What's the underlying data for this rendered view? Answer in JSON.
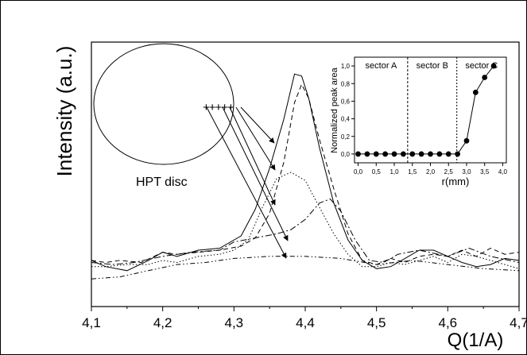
{
  "chart_data": [
    {
      "type": "line",
      "title": "",
      "xlabel": "Q(1/A)",
      "ylabel": "Intensity (a.u.)",
      "xlim": [
        4.1,
        4.7
      ],
      "ylim": [
        0,
        1
      ],
      "x_ticks": [
        "4,1",
        "4,2",
        "4,3",
        "4,4",
        "4,5",
        "4,6",
        "4,7"
      ],
      "grid": false,
      "series": [
        {
          "style": "solid",
          "points": [
            [
              4.1,
              0.07
            ],
            [
              4.12,
              0.04
            ],
            [
              4.15,
              0.02
            ],
            [
              4.18,
              0.07
            ],
            [
              4.2,
              0.11
            ],
            [
              4.22,
              0.09
            ],
            [
              4.25,
              0.12
            ],
            [
              4.28,
              0.13
            ],
            [
              4.31,
              0.19
            ],
            [
              4.33,
              0.32
            ],
            [
              4.35,
              0.52
            ],
            [
              4.37,
              0.76
            ],
            [
              4.385,
              0.98
            ],
            [
              4.395,
              0.97
            ],
            [
              4.405,
              0.86
            ],
            [
              4.42,
              0.62
            ],
            [
              4.44,
              0.35
            ],
            [
              4.46,
              0.17
            ],
            [
              4.48,
              0.07
            ],
            [
              4.5,
              0.03
            ],
            [
              4.52,
              0.04
            ],
            [
              4.54,
              0.08
            ],
            [
              4.56,
              0.12
            ],
            [
              4.58,
              0.12
            ],
            [
              4.6,
              0.09
            ],
            [
              4.62,
              0.06
            ],
            [
              4.64,
              0.04
            ],
            [
              4.66,
              0.05
            ],
            [
              4.68,
              0.08
            ],
            [
              4.7,
              0.07
            ]
          ]
        },
        {
          "style": "dashed",
          "points": [
            [
              4.1,
              0.07
            ],
            [
              4.12,
              0.06
            ],
            [
              4.14,
              0.07
            ],
            [
              4.17,
              0.06
            ],
            [
              4.2,
              0.11
            ],
            [
              4.22,
              0.1
            ],
            [
              4.25,
              0.11
            ],
            [
              4.28,
              0.12
            ],
            [
              4.31,
              0.14
            ],
            [
              4.33,
              0.18
            ],
            [
              4.35,
              0.3
            ],
            [
              4.37,
              0.55
            ],
            [
              4.385,
              0.84
            ],
            [
              4.395,
              0.93
            ],
            [
              4.405,
              0.86
            ],
            [
              4.42,
              0.66
            ],
            [
              4.44,
              0.42
            ],
            [
              4.46,
              0.2
            ],
            [
              4.48,
              0.07
            ],
            [
              4.5,
              0.05
            ],
            [
              4.52,
              0.08
            ],
            [
              4.54,
              0.06
            ],
            [
              4.56,
              0.09
            ],
            [
              4.58,
              0.1
            ],
            [
              4.6,
              0.09
            ],
            [
              4.62,
              0.12
            ],
            [
              4.64,
              0.09
            ],
            [
              4.66,
              0.13
            ],
            [
              4.68,
              0.1
            ],
            [
              4.7,
              0.11
            ]
          ]
        },
        {
          "style": "dotted",
          "points": [
            [
              4.1,
              0.04
            ],
            [
              4.12,
              0.04
            ],
            [
              4.15,
              0.05
            ],
            [
              4.18,
              0.05
            ],
            [
              4.2,
              0.07
            ],
            [
              4.22,
              0.06
            ],
            [
              4.25,
              0.09
            ],
            [
              4.28,
              0.1
            ],
            [
              4.3,
              0.12
            ],
            [
              4.32,
              0.17
            ],
            [
              4.34,
              0.33
            ],
            [
              4.36,
              0.47
            ],
            [
              4.38,
              0.5
            ],
            [
              4.4,
              0.46
            ],
            [
              4.42,
              0.33
            ],
            [
              4.44,
              0.2
            ],
            [
              4.46,
              0.1
            ],
            [
              4.48,
              0.04
            ],
            [
              4.5,
              0.04
            ],
            [
              4.52,
              0.06
            ],
            [
              4.54,
              0.05
            ],
            [
              4.56,
              0.07
            ],
            [
              4.58,
              0.09
            ],
            [
              4.6,
              0.06
            ],
            [
              4.62,
              0.1
            ],
            [
              4.64,
              0.09
            ],
            [
              4.66,
              0.07
            ],
            [
              4.68,
              0.05
            ],
            [
              4.7,
              0.03
            ]
          ]
        },
        {
          "style": "dash-dot",
          "points": [
            [
              4.1,
              0.06
            ],
            [
              4.13,
              0.05
            ],
            [
              4.16,
              0.06
            ],
            [
              4.2,
              0.09
            ],
            [
              4.24,
              0.11
            ],
            [
              4.28,
              0.12
            ],
            [
              4.3,
              0.16
            ],
            [
              4.33,
              0.18
            ],
            [
              4.36,
              0.2
            ],
            [
              4.38,
              0.22
            ],
            [
              4.4,
              0.27
            ],
            [
              4.42,
              0.35
            ],
            [
              4.435,
              0.37
            ],
            [
              4.45,
              0.31
            ],
            [
              4.47,
              0.17
            ],
            [
              4.49,
              0.07
            ],
            [
              4.51,
              0.06
            ],
            [
              4.53,
              0.1
            ],
            [
              4.56,
              0.12
            ],
            [
              4.6,
              0.09
            ],
            [
              4.63,
              0.13
            ],
            [
              4.66,
              0.09
            ],
            [
              4.7,
              0.06
            ]
          ]
        },
        {
          "style": "dash-dot-dot",
          "points": [
            [
              4.1,
              -0.02
            ],
            [
              4.14,
              -0.01
            ],
            [
              4.18,
              0.02
            ],
            [
              4.22,
              0.05
            ],
            [
              4.26,
              0.06
            ],
            [
              4.3,
              0.08
            ],
            [
              4.35,
              0.09
            ],
            [
              4.4,
              0.09
            ],
            [
              4.45,
              0.08
            ],
            [
              4.5,
              0.05
            ],
            [
              4.55,
              0.07
            ],
            [
              4.6,
              0.05
            ],
            [
              4.65,
              0.03
            ],
            [
              4.7,
              0.02
            ]
          ]
        }
      ],
      "annotations": {
        "disc_label": "HPT disc",
        "marker_symbols": "+++++"
      }
    },
    {
      "type": "scatter",
      "title": "",
      "xlabel": "r(mm)",
      "ylabel": "Normalized peak area",
      "xlim": [
        -0.1,
        4.1
      ],
      "ylim": [
        -0.1,
        1.1
      ],
      "x_ticks": [
        "0,0",
        "0,5",
        "1,0",
        "1,5",
        "2,0",
        "2,5",
        "3,0",
        "3,5",
        "4,0"
      ],
      "y_ticks": [
        "0,0",
        "0,2",
        "0,4",
        "0,6",
        "0,8",
        "1,0"
      ],
      "sectors": [
        "sector A",
        "sector B",
        "sector C"
      ],
      "sector_boundaries": [
        1.37,
        2.73
      ],
      "x": [
        0.0,
        0.25,
        0.5,
        0.75,
        1.0,
        1.25,
        1.5,
        1.75,
        2.0,
        2.25,
        2.5,
        2.75,
        3.0,
        3.25,
        3.5,
        3.75
      ],
      "y": [
        0,
        0,
        0,
        0,
        0,
        0,
        0,
        0,
        0,
        0,
        0,
        0,
        0.15,
        0.7,
        0.87,
        1.0
      ]
    }
  ]
}
